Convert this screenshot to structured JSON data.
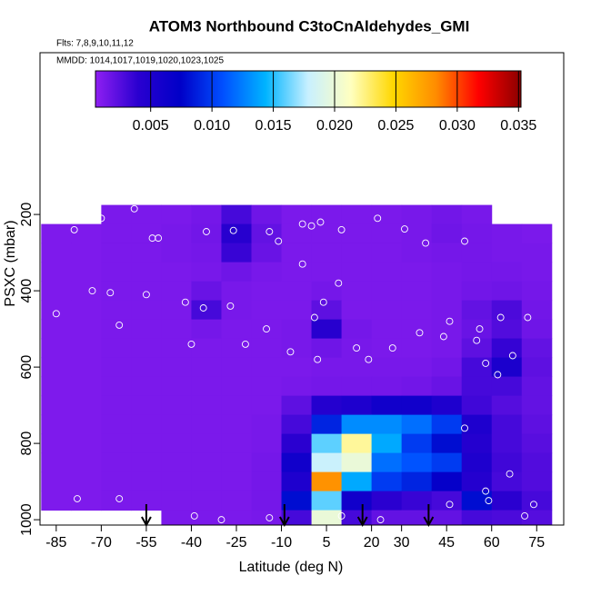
{
  "chart_data": {
    "type": "heatmap",
    "title": "ATOM3 Northbound C3toCnAldehydes_GMI",
    "subtitle": "Flts: 7,8,9,10,11,12",
    "annotation": "MMDD: 1014,1017,1019,1020,1023,1025",
    "x_label": "Latitude (deg N)",
    "y_label": "PSXC (mbar)",
    "xlim": [
      -90.4,
      84
    ],
    "ylim": [
      1014,
      -224
    ],
    "xticks": [
      -85,
      -70,
      -55,
      -40,
      -25,
      -10,
      5,
      20,
      30,
      45,
      60,
      75
    ],
    "yticks": [
      200,
      400,
      600,
      800,
      1000
    ],
    "x": [
      -85,
      -75,
      -65,
      -55,
      -45,
      -35,
      -25,
      -15,
      -5,
      5,
      15,
      25,
      35,
      45,
      55,
      65,
      75
    ],
    "y": [
      200,
      250,
      300,
      350,
      400,
      450,
      500,
      550,
      600,
      650,
      700,
      750,
      800,
      850,
      900,
      950,
      1000
    ],
    "values": [
      [
        null,
        null,
        0.0012,
        0.0012,
        0.0012,
        0.0014,
        0.003,
        0.0016,
        0.0012,
        0.0012,
        0.0012,
        0.0012,
        0.0013,
        0.0015,
        0.0013,
        null,
        null
      ],
      [
        0.0011,
        0.0011,
        0.0012,
        0.0012,
        0.0013,
        0.0015,
        0.0042,
        0.002,
        0.0012,
        0.0012,
        0.0012,
        0.0012,
        0.0013,
        0.0016,
        0.0014,
        0.0013,
        0.0012
      ],
      [
        0.0011,
        0.0011,
        0.0012,
        0.0012,
        0.0013,
        0.0014,
        0.0035,
        0.0018,
        0.0012,
        0.0012,
        0.0012,
        0.0012,
        0.0013,
        0.0014,
        0.0014,
        0.0013,
        0.0013
      ],
      [
        0.0011,
        0.0011,
        0.0012,
        0.0012,
        0.0012,
        0.0013,
        0.0016,
        0.0013,
        0.0012,
        0.0012,
        0.0012,
        0.0012,
        0.0012,
        0.0013,
        0.0014,
        0.0014,
        0.0013
      ],
      [
        0.0011,
        0.0011,
        0.0012,
        0.0012,
        0.0012,
        0.0018,
        0.0013,
        0.0012,
        0.0012,
        0.0014,
        0.0012,
        0.0012,
        0.0012,
        0.0013,
        0.0015,
        0.0016,
        0.0014
      ],
      [
        0.0011,
        0.0011,
        0.0012,
        0.0012,
        0.0012,
        0.003,
        0.0013,
        0.0012,
        0.0012,
        0.0022,
        0.0012,
        0.0012,
        0.0012,
        0.0013,
        0.002,
        0.0028,
        0.0015
      ],
      [
        0.0011,
        0.0011,
        0.0012,
        0.0012,
        0.0012,
        0.0014,
        0.0012,
        0.0012,
        0.0013,
        0.0042,
        0.0014,
        0.0012,
        0.0012,
        0.0013,
        0.0018,
        0.0026,
        0.0016
      ],
      [
        0.0011,
        0.0011,
        0.0012,
        0.0012,
        0.0012,
        0.0012,
        0.0012,
        0.0012,
        0.0013,
        0.0016,
        0.0013,
        0.0012,
        0.0012,
        0.0013,
        0.0022,
        0.0036,
        0.002
      ],
      [
        0.0011,
        0.0011,
        0.0012,
        0.0012,
        0.0012,
        0.0012,
        0.0012,
        0.0012,
        0.0012,
        0.0013,
        0.0013,
        0.0013,
        0.0013,
        0.0015,
        0.003,
        0.0052,
        0.0022
      ],
      [
        0.0011,
        0.0011,
        0.0012,
        0.0012,
        0.0012,
        0.0012,
        0.0012,
        0.0012,
        0.0013,
        0.0014,
        0.0014,
        0.0014,
        0.0015,
        0.0018,
        0.003,
        0.003,
        0.002
      ],
      [
        0.0011,
        0.0011,
        0.0012,
        0.0012,
        0.0012,
        0.0012,
        0.0012,
        0.0012,
        0.0022,
        0.0045,
        0.005,
        0.006,
        0.006,
        0.005,
        0.0032,
        0.0025,
        0.002
      ],
      [
        0.0011,
        0.0011,
        0.0012,
        0.0012,
        0.0012,
        0.0012,
        0.0012,
        0.0013,
        0.003,
        0.009,
        0.013,
        0.013,
        0.012,
        0.01,
        0.005,
        0.003,
        0.0022
      ],
      [
        0.0011,
        0.0011,
        0.0012,
        0.0012,
        0.0012,
        0.0012,
        0.0012,
        0.0013,
        0.004,
        0.016,
        0.022,
        0.014,
        0.01,
        0.008,
        0.0045,
        0.003,
        0.0024
      ],
      [
        0.0011,
        0.0011,
        0.0012,
        0.0012,
        0.0012,
        0.0012,
        0.0012,
        0.0014,
        0.006,
        0.018,
        0.02,
        0.012,
        0.011,
        0.01,
        0.005,
        0.0032,
        0.0026
      ],
      [
        0.0011,
        0.0011,
        0.0012,
        0.0012,
        0.0012,
        0.0012,
        0.0012,
        0.0014,
        0.005,
        0.028,
        0.014,
        0.01,
        0.009,
        0.007,
        0.0045,
        0.003,
        0.0026
      ],
      [
        0.0011,
        0.0011,
        0.0012,
        0.0012,
        0.0012,
        0.0012,
        0.0012,
        0.0014,
        0.008,
        0.016,
        0.006,
        0.004,
        0.0035,
        0.003,
        0.008,
        0.004,
        0.003
      ],
      [
        null,
        null,
        null,
        null,
        0.0012,
        0.0012,
        0.0012,
        0.0013,
        0.003,
        0.02,
        0.003,
        0.002,
        0.002,
        0.002,
        0.003,
        0.0028,
        0.0025
      ]
    ],
    "colorbar": {
      "lim": [
        0.0005,
        0.0352
      ],
      "ticks": [
        0.005,
        {
          "value": 0.01,
          "label": "0.010"
        },
        0.015,
        {
          "value": 0.02,
          "label": "0.020"
        },
        0.025,
        {
          "value": 0.03,
          "label": "0.030"
        },
        0.035
      ],
      "colors": [
        "#8f1ff2",
        "#2a00d0",
        "#0000c8",
        "#0050ff",
        "#00b4ff",
        "#c8f0ff",
        "#ffffc0",
        "#ffd700",
        "#ff8c00",
        "#ff0000",
        "#8b0000"
      ]
    },
    "points": {
      "color": "#ffffff",
      "x": [
        -59,
        -70,
        -79,
        -53,
        -51,
        -35,
        -26,
        -14,
        -3,
        0,
        3,
        10,
        22,
        31,
        38,
        51,
        -11,
        -73,
        -67,
        -55,
        -42,
        -36,
        -27,
        -15,
        -22,
        -40,
        -64,
        -85,
        -7,
        9,
        4,
        1,
        19,
        27,
        36,
        46,
        56,
        58,
        62,
        67,
        72,
        55,
        63,
        51,
        -78,
        -64,
        -39,
        -30,
        -14,
        10,
        23,
        46,
        58,
        59,
        71,
        66,
        74,
        44,
        15,
        -3,
        2
      ],
      "y": [
        185,
        210,
        240,
        262,
        262,
        245,
        242,
        245,
        225,
        230,
        220,
        240,
        210,
        238,
        275,
        270,
        270,
        400,
        405,
        410,
        430,
        445,
        440,
        500,
        540,
        540,
        490,
        460,
        560,
        380,
        430,
        470,
        580,
        550,
        510,
        480,
        500,
        590,
        620,
        570,
        470,
        530,
        470,
        760,
        945,
        945,
        990,
        1000,
        995,
        990,
        1000,
        960,
        925,
        950,
        990,
        880,
        960,
        520,
        550,
        330,
        580
      ]
    },
    "arrows": [
      -55,
      -9,
      17,
      39
    ]
  }
}
